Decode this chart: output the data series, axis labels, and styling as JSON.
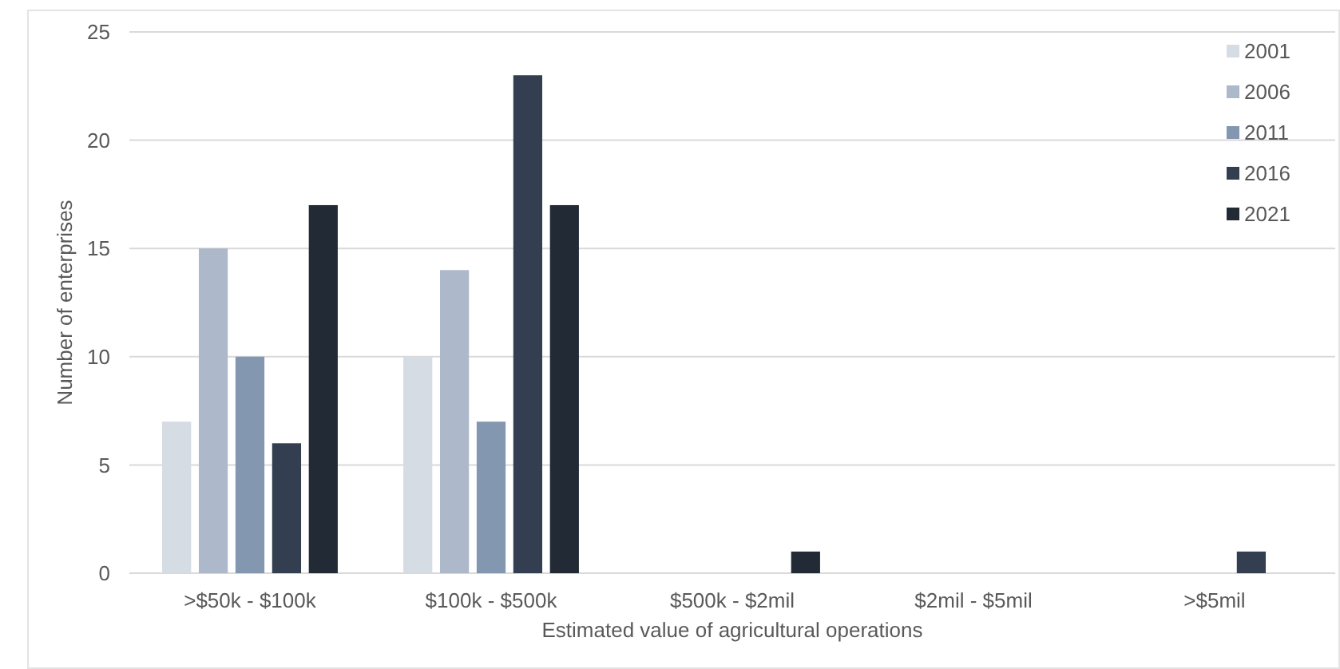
{
  "chart_data": {
    "type": "bar",
    "xlabel": "Estimated value of agricultural operations",
    "ylabel": "Number of enterprises",
    "categories": [
      ">$50k - $100k",
      "$100k - $500k",
      "$500k - $2mil",
      "$2mil - $5mil",
      ">$5mil"
    ],
    "series": [
      {
        "name": "2001",
        "color": "#d6dce4",
        "values": [
          7,
          10,
          null,
          null,
          null
        ]
      },
      {
        "name": "2006",
        "color": "#adb9ca",
        "values": [
          15,
          14,
          null,
          null,
          null
        ]
      },
      {
        "name": "2011",
        "color": "#8497b0",
        "values": [
          10,
          7,
          null,
          null,
          null
        ]
      },
      {
        "name": "2016",
        "color": "#333f50",
        "values": [
          6,
          23,
          null,
          null,
          1
        ]
      },
      {
        "name": "2021",
        "color": "#222a35",
        "values": [
          17,
          17,
          1,
          null,
          null
        ]
      }
    ],
    "ylim": [
      0,
      25
    ],
    "yticks": [
      0,
      5,
      10,
      15,
      20,
      25
    ],
    "grid": "y",
    "legend": "top right"
  }
}
